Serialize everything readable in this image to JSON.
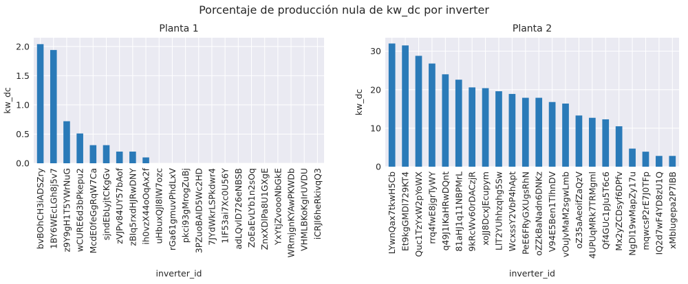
{
  "suptitle": "Porcentaje de producción nula de kw_dc por inverter",
  "chart_data": [
    {
      "type": "bar",
      "title": "Planta 1",
      "xlabel": "inverter_id",
      "ylabel": "kw_dc",
      "ylim": [
        0,
        2.15
      ],
      "yticks": [
        0.0,
        0.5,
        1.0,
        1.5,
        2.0
      ],
      "ytick_labels": [
        "0.0",
        "0.5",
        "1.0",
        "1.5",
        "2.0"
      ],
      "grid": true,
      "bar_color": "#2a7ab8",
      "background": "#eaeaf2",
      "categories": [
        "bvBOhCH3iADSZry",
        "1BY6WEcLGh8j5v7",
        "z9Y9gH1T5YWrNuG",
        "wCURE6d3bPkepu2",
        "McdE0feGgRqW7Ca",
        "sjndEbLyjtCKgGv",
        "zVJPv84UY57bAof",
        "zBIq5rxdHJRwDNY",
        "ih0vzX44oOqAx2f",
        "uHbuxQJl8lW7ozc",
        "rGa61gmuvPhdLxV",
        "pkci93gMrogZuBj",
        "3PZuoBAID5Wc2HD",
        "7JYdWkrLSPkdwr4",
        "1IF53ai7Xc0U56Y",
        "adLQvlD726eNBSB",
        "ZoEaEvLYb1n2sOq",
        "ZnxXDlPa8U1GXgE",
        "YxYtjZvoooNbGkE",
        "WRmjgnKYAwPKWDb",
        "VHMLBKoKgIrUVDU",
        "iCRJl6heRkivqQ3"
      ],
      "values": [
        2.04,
        1.94,
        0.72,
        0.51,
        0.31,
        0.31,
        0.2,
        0.2,
        0.1,
        0,
        0,
        0,
        0,
        0,
        0,
        0,
        0,
        0,
        0,
        0,
        0,
        0
      ]
    },
    {
      "type": "bar",
      "title": "Planta 2",
      "xlabel": "inverter_id",
      "ylabel": "kw_dc",
      "ylim": [
        0,
        33.5
      ],
      "yticks": [
        0,
        10,
        20,
        30
      ],
      "ytick_labels": [
        "0",
        "10",
        "20",
        "30"
      ],
      "grid": true,
      "bar_color": "#2a7ab8",
      "background": "#eaeaf2",
      "categories": [
        "LYwnQax7tkwH5Cb",
        "Et9kgGMDl729KT4",
        "Quc1TzYxW2pYoWX",
        "rrq4fwE8jgrTyWY",
        "q49J1IKaHRwDQnt",
        "81aHJ1q11NBPMrL",
        "9kRcWv60rDACzjR",
        "xoJJ8DcxJEcupym",
        "LlT2YUhhzqhg5Sw",
        "WcxssY2VbP4hApt",
        "PeE6FRyGXUgsRhN",
        "oZZkBaNadn6DNKz",
        "V94E5Ben1TlhnDV",
        "vOuJvMaM2sgwLmb",
        "oZ35aAeoifZaQzV",
        "4UPUqMRk7TRMgml",
        "Qf4GUc1pJu5T6c6",
        "Mx2yZCDsyf6DPfv",
        "NgDl19wMapZy17u",
        "mqwcsP2rE7J0TFp",
        "IQ2d7wF4YD8zU1Q",
        "xMbIugepa2P7lBB"
      ],
      "values": [
        32.0,
        31.5,
        28.8,
        26.8,
        24.0,
        22.6,
        20.6,
        20.4,
        19.6,
        18.9,
        17.9,
        17.9,
        16.8,
        16.4,
        13.3,
        12.7,
        12.3,
        10.5,
        4.7,
        3.9,
        2.8,
        2.8
      ]
    }
  ]
}
